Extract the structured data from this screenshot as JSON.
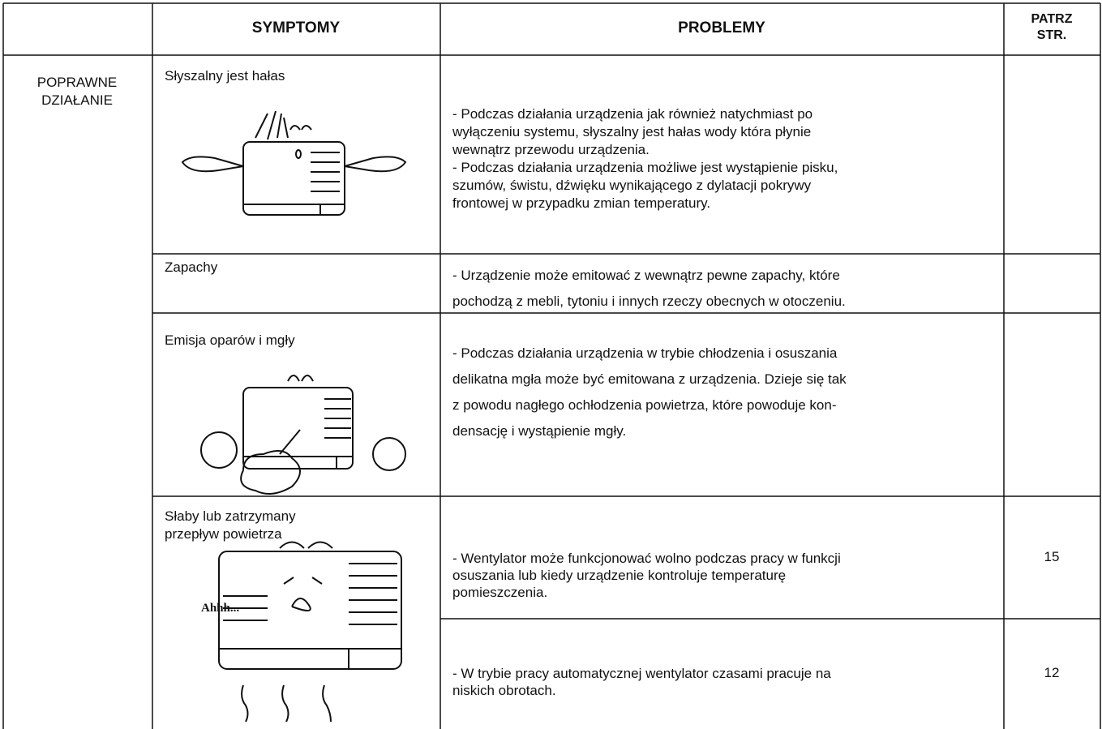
{
  "table": {
    "header": {
      "symptoms": "SYMPTOMY",
      "problems": "PROBLEMY",
      "page": [
        "PATRZ",
        "STR."
      ]
    },
    "group": [
      "POPRAWNE",
      "DZIAŁANIE"
    ],
    "rows": [
      {
        "symptom": [
          "Słyszalny jest hałas"
        ],
        "problems": [
          {
            "lines": [
              "- Podczas działania urządzenia jak również natychmiast po",
              "wyłączeniu systemu, słyszalny jest hałas wody która płynie",
              "wewnątrz przewodu urządzenia.",
              "- Podczas działania urządzenia możliwe jest wystąpienie pisku,",
              "szumów, świstu, dźwięku wynikającego z dylatacji pokrywy",
              "frontowej w przypadku zmian temperatury."
            ]
          }
        ]
      },
      {
        "symptom": [
          "Zapachy"
        ],
        "problems": [
          {
            "lines": [
              "- Urządzenie może emitować z wewnątrz pewne zapachy, które",
              "pochodzą z mebli, tytoniu i innych rzeczy obecnych w otoczeniu."
            ]
          }
        ]
      },
      {
        "symptom": [
          "Emisja oparów i mgły"
        ],
        "problems": [
          {
            "lines": [
              "- Podczas działania urządzenia w trybie chłodzenia i osuszania",
              "delikatna mgła może być emitowana z urządzenia. Dzieje się tak",
              "z powodu nagłego ochłodzenia powietrza, które powoduje kon-",
              "densację i wystąpienie mgły."
            ]
          }
        ]
      },
      {
        "symptom": [
          "Słaby lub zatrzymany",
          "przepływ powietrza"
        ],
        "illustration_text": "Ahhh...",
        "problems": [
          {
            "lines": [
              "- Wentylator może funkcjonować wolno podczas pracy w funkcji",
              "osuszania lub kiedy urządzenie kontroluje temperaturę",
              "pomieszczenia."
            ],
            "page": 15
          },
          {
            "lines": [
              "- W trybie pracy automatycznej wentylator czasami pracuje na",
              "niskich obrotach."
            ],
            "page": 12
          }
        ]
      }
    ]
  }
}
